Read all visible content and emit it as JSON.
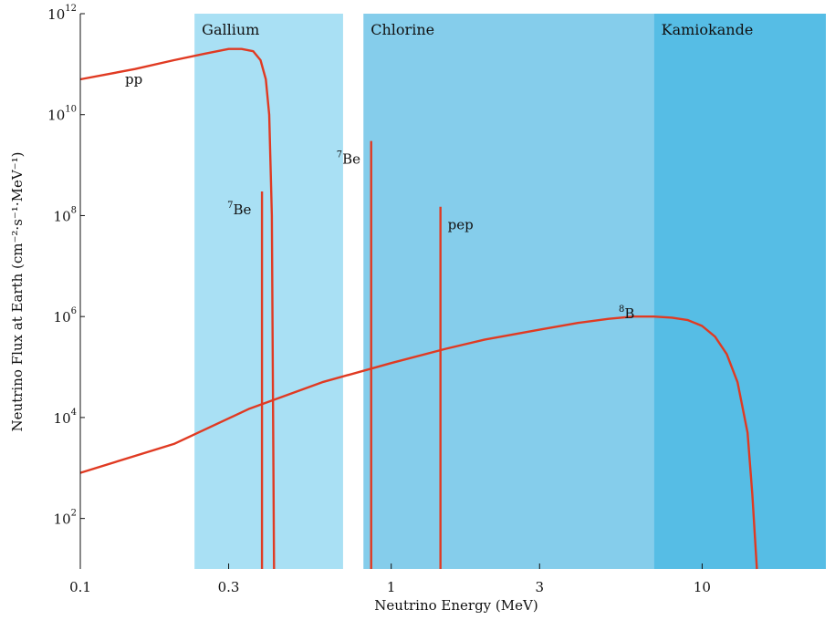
{
  "chart_data": {
    "type": "line",
    "title": "",
    "xlabel": "Neutrino Energy (MeV)",
    "ylabel": "Neutrino Flux at Earth (cm⁻²·s⁻¹·MeV⁻¹)",
    "x_scale": "log",
    "y_scale": "log",
    "xlim": [
      0.1,
      25
    ],
    "ylim": [
      10.0,
      1000000000000.0
    ],
    "x_ticks": [
      {
        "value": 0.1,
        "label": "0.1"
      },
      {
        "value": 0.3,
        "label": "0.3"
      },
      {
        "value": 1,
        "label": "1"
      },
      {
        "value": 3,
        "label": "3"
      },
      {
        "value": 10,
        "label": "10"
      }
    ],
    "y_ticks": [
      {
        "value": 100,
        "base": "10",
        "exp": "2"
      },
      {
        "value": 10000,
        "base": "10",
        "exp": "4"
      },
      {
        "value": 1000000,
        "base": "10",
        "exp": "6"
      },
      {
        "value": 100000000,
        "base": "10",
        "exp": "8"
      },
      {
        "value": 10000000000,
        "base": "10",
        "exp": "10"
      },
      {
        "value": 1000000000000,
        "base": "10",
        "exp": "12"
      }
    ],
    "detector_bands": [
      {
        "label": "Gallium",
        "x_from": 0.233,
        "x_to": 0.7,
        "color": "#a9e0f4"
      },
      {
        "label": "Chlorine",
        "x_from": 0.814,
        "x_to": 7,
        "color": "#85cdeb"
      },
      {
        "label": "Kamiokande",
        "x_from": 7,
        "x_to": 25,
        "color": "#56bde5"
      }
    ],
    "series": [
      {
        "name": "pp",
        "color": "#e03a22",
        "x": [
          0.1,
          0.15,
          0.2,
          0.25,
          0.3,
          0.33,
          0.36,
          0.38,
          0.395,
          0.405,
          0.413,
          0.42
        ],
        "y": [
          50000000000.0,
          80000000000.0,
          120000000000.0,
          160000000000.0,
          200000000000.0,
          200000000000.0,
          180000000000.0,
          120000000000.0,
          50000000000.0,
          10000000000.0,
          100000000.0,
          10.0
        ]
      },
      {
        "name": "8B",
        "color": "#e03a22",
        "x": [
          0.1,
          0.2,
          0.35,
          0.6,
          1,
          1.5,
          2,
          3,
          4,
          5,
          6,
          7,
          8,
          9,
          10,
          11,
          12,
          13,
          14,
          14.5,
          15
        ],
        "y": [
          800,
          3000,
          15000,
          50000,
          120000,
          230000,
          350000,
          550000,
          750000,
          900000,
          1000000,
          1000000,
          950000,
          850000,
          650000,
          400000,
          180000,
          50000,
          5000,
          300,
          10
        ]
      }
    ],
    "lines": [
      {
        "name": "7Be",
        "energy": 0.384,
        "flux": 300000000.0,
        "label_base": "Be",
        "label_sup": "7"
      },
      {
        "name": "7Be",
        "energy": 0.862,
        "flux": 3000000000.0,
        "label_base": "Be",
        "label_sup": "7"
      },
      {
        "name": "pep",
        "energy": 1.44,
        "flux": 150000000.0,
        "label_base": "pep",
        "label_sup": ""
      }
    ],
    "labels": {
      "pp": "pp",
      "b8_sup": "8",
      "b8_base": "B"
    },
    "grid": false,
    "legend": "none"
  }
}
